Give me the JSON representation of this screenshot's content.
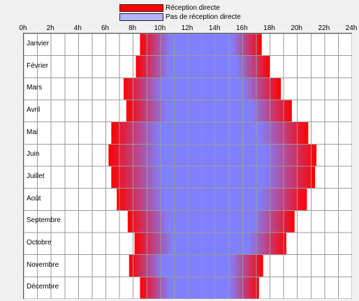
{
  "legend": {
    "direct_label": "Réception directe",
    "indirect_label": "Pas de réception directe"
  },
  "colors": {
    "direct": "#ff0000",
    "indirect": "#8080ff",
    "grid": "#9a9a9a",
    "background": "#ffffff"
  },
  "hours": [
    "0h",
    "2h",
    "4h",
    "6h",
    "8h",
    "10h",
    "12h",
    "14h",
    "16h",
    "18h",
    "20h",
    "22h",
    "24h"
  ],
  "months": [
    "Janvier",
    "Février",
    "Mars",
    "Avril",
    "Mai",
    "Juin",
    "Juillet",
    "Août",
    "Septembre",
    "Octobre",
    "Novembre",
    "Décembre"
  ],
  "chart_data": {
    "type": "heatmap",
    "x_range_hours": [
      0,
      24
    ],
    "categories": [
      "Janvier",
      "Février",
      "Mars",
      "Avril",
      "Mai",
      "Juin",
      "Juillet",
      "Août",
      "Septembre",
      "Octobre",
      "Novembre",
      "Décembre"
    ],
    "reception_window_hours": [
      {
        "month": "Janvier",
        "start": 8.5,
        "end": 17.4
      },
      {
        "month": "Février",
        "start": 8.2,
        "end": 18.0
      },
      {
        "month": "Mars",
        "start": 7.3,
        "end": 18.8
      },
      {
        "month": "Avril",
        "start": 7.5,
        "end": 19.6
      },
      {
        "month": "Mai",
        "start": 6.4,
        "end": 20.8
      },
      {
        "month": "Juin",
        "start": 6.2,
        "end": 21.4
      },
      {
        "month": "Juillet",
        "start": 6.4,
        "end": 21.3
      },
      {
        "month": "Août",
        "start": 6.8,
        "end": 20.7
      },
      {
        "month": "Septembre",
        "start": 7.6,
        "end": 19.8
      },
      {
        "month": "Octobre",
        "start": 8.1,
        "end": 19.2
      },
      {
        "month": "Novembre",
        "start": 7.7,
        "end": 17.5
      },
      {
        "month": "Décembre",
        "start": 8.5,
        "end": 17.2
      }
    ],
    "grid": true
  }
}
